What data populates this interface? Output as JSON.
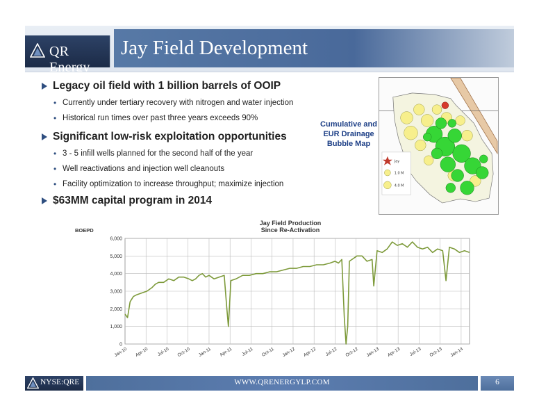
{
  "header": {
    "logo_text": "QR Energy",
    "title": "Jay Field Development"
  },
  "bullets": [
    {
      "text": "Legacy oil field with 1 billion barrels of OOIP",
      "sub": [
        "Currently under tertiary recovery with nitrogen and water injection",
        "Historical run times over past three years exceeds 90%"
      ]
    },
    {
      "text": "Significant low-risk exploitation opportunities",
      "sub": [
        "3 - 5 infill wells planned for the second half of the year",
        "Well reactivations and injection well cleanouts",
        "Facility optimization to increase throughput; maximize injection"
      ]
    },
    {
      "text": "$63MM capital program in 2014",
      "sub": []
    }
  ],
  "map": {
    "caption_lines": [
      "Cumulative and",
      "EUR Drainage",
      "Bubble Map"
    ],
    "legend": [
      "Jay",
      "1.0 M",
      "4.0 M"
    ]
  },
  "chart_data": {
    "type": "line",
    "title_lines": [
      "Jay Field Production",
      "Since Re-Activation"
    ],
    "ylabel": "BOEPD",
    "ylim": [
      0,
      6000
    ],
    "yticks": [
      0,
      1000,
      2000,
      3000,
      4000,
      5000,
      6000
    ],
    "ytick_labels": [
      "0",
      "1,000",
      "2,000",
      "3,000",
      "4,000",
      "5,000",
      "6,000"
    ],
    "xlim": [
      0,
      20.5
    ],
    "xticks": [
      "Jan-10",
      "Apr-10",
      "Jul-10",
      "Oct-10",
      "Jan-11",
      "Apr-11",
      "Jul-11",
      "Oct-11",
      "Jan-12",
      "Apr-12",
      "Jul-12",
      "Oct-12",
      "Jan-13",
      "Apr-13",
      "Jul-13",
      "Oct-13",
      "Jan-14"
    ],
    "grid": true,
    "series": [
      {
        "color": "#7d9a3a",
        "x": [
          0,
          0.15,
          0.3,
          0.5,
          0.7,
          1.0,
          1.3,
          1.6,
          1.8,
          2.0,
          2.3,
          2.6,
          2.9,
          3.2,
          3.5,
          3.8,
          4.0,
          4.2,
          4.4,
          4.6,
          4.8,
          5.0,
          5.3,
          5.6,
          5.9,
          6.05,
          6.15,
          6.3,
          6.6,
          7.0,
          7.4,
          7.8,
          8.2,
          8.6,
          9.0,
          9.4,
          9.8,
          10.2,
          10.6,
          11.0,
          11.4,
          11.8,
          12.2,
          12.5,
          12.7,
          12.9,
          13.05,
          13.15,
          13.25,
          13.35,
          13.5,
          13.8,
          14.1,
          14.4,
          14.7,
          14.8,
          15.0,
          15.3,
          15.6,
          15.9,
          16.2,
          16.5,
          16.8,
          17.1,
          17.4,
          17.7,
          18.0,
          18.3,
          18.6,
          18.9,
          19.1,
          19.3,
          19.6,
          19.9,
          20.2,
          20.5
        ],
        "y": [
          1700,
          1500,
          2400,
          2700,
          2800,
          2900,
          3000,
          3200,
          3400,
          3500,
          3500,
          3700,
          3600,
          3800,
          3800,
          3700,
          3600,
          3700,
          3900,
          4000,
          3800,
          3900,
          3700,
          3800,
          3900,
          2100,
          1000,
          3600,
          3700,
          3900,
          3900,
          4000,
          4000,
          4100,
          4100,
          4200,
          4300,
          4300,
          4400,
          4400,
          4500,
          4500,
          4600,
          4700,
          4600,
          4800,
          1500,
          0,
          1000,
          4700,
          4800,
          5000,
          5000,
          4700,
          4800,
          3300,
          5300,
          5200,
          5400,
          5800,
          5600,
          5700,
          5500,
          5800,
          5500,
          5400,
          5500,
          5200,
          5400,
          5300,
          3600,
          5500,
          5400,
          5200,
          5300,
          5200
        ]
      }
    ]
  },
  "footer": {
    "ticker": "NYSE:QRE",
    "url": "WWW.QRENERGYLP.COM",
    "page": "6"
  },
  "colors": {
    "navy": "#1c2b47",
    "title_blue": "#49699a",
    "bullet_blue": "#2f4f80",
    "caption_blue": "#1d3f86",
    "line_green": "#7d9a3a"
  }
}
